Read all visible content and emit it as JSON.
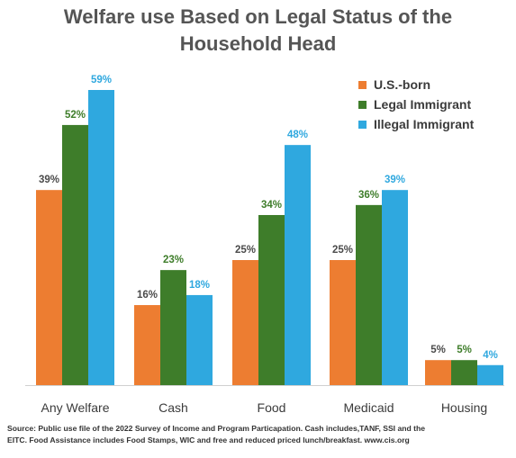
{
  "chart_data": {
    "type": "bar",
    "title_lines": [
      "Welfare use Based on Legal Status of the",
      "Household Head"
    ],
    "categories": [
      "Any Welfare",
      "Cash",
      "Food",
      "Medicaid",
      "Housing"
    ],
    "series": [
      {
        "name": "U.S.-born",
        "values": [
          39,
          16,
          25,
          25,
          5
        ],
        "labels": [
          "39%",
          "16%",
          "25%",
          "25%",
          "5%"
        ],
        "color": "#ED7D31",
        "label_color": "#4a4a4a"
      },
      {
        "name": "Legal Immigrant",
        "values": [
          52,
          23,
          34,
          36,
          5
        ],
        "labels": [
          "52%",
          "23%",
          "34%",
          "36%",
          "5%"
        ],
        "color": "#3E7D2A",
        "label_color": "#3E7D2A"
      },
      {
        "name": "Illegal Immigrant",
        "values": [
          59,
          18,
          48,
          39,
          4
        ],
        "labels": [
          "59%",
          "18%",
          "48%",
          "39%",
          "4%"
        ],
        "color": "#2FA8DF",
        "label_color": "#2FA8DF"
      }
    ],
    "ylim": [
      0,
      60
    ],
    "grid": false,
    "legend_position": "top-right",
    "source_lines": [
      "Source: Public use file of the 2022 Survey of Income and Program Particapation.  Cash includes,TANF, SSI and the",
      "EITC.  Food Assistance includes Food Stamps, WIC and free and reduced priced lunch/breakfast.  www.cis.org"
    ]
  }
}
